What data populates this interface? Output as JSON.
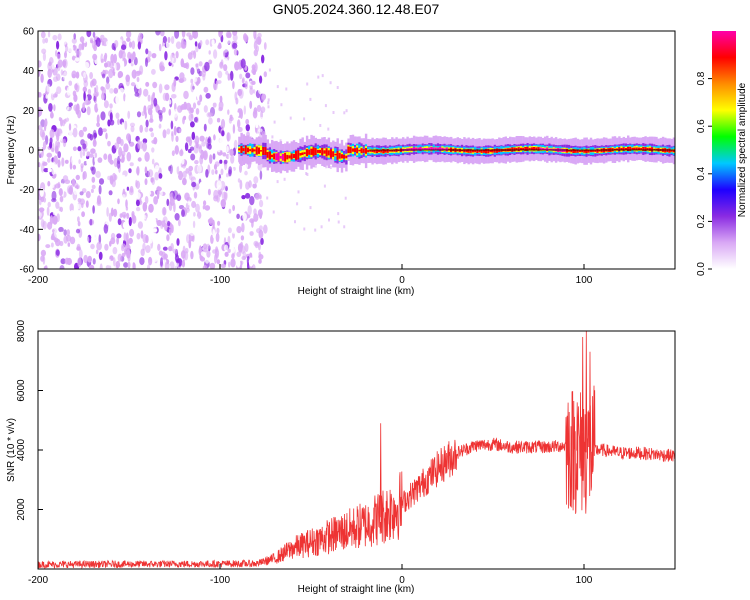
{
  "figure": {
    "title": "GN05.2024.360.12.48.E07"
  },
  "chart_data": [
    {
      "type": "heatmap",
      "xlabel": "Height of straight line (km)",
      "ylabel": "Frequency (Hz)",
      "xlim": [
        -200,
        150
      ],
      "ylim": [
        -60,
        60
      ],
      "xticks": [
        -200,
        -100,
        0,
        100
      ],
      "yticks": [
        -60,
        -40,
        -20,
        0,
        20,
        40,
        60
      ],
      "grid": false,
      "colorbar": {
        "label": "Normalized spectral amplitude",
        "range": [
          0,
          1
        ],
        "ticks": [
          0.0,
          0.2,
          0.4,
          0.6,
          0.8
        ],
        "colormap": [
          "#ffffff",
          "#d9a8f5",
          "#8a2be2",
          "#1e00ff",
          "#00c8ff",
          "#00ff00",
          "#ffff00",
          "#ff8c00",
          "#ff0000",
          "#ff00aa"
        ]
      },
      "features": {
        "noise_region_x": [
          -200,
          -75
        ],
        "signal_band_center_hz": 0,
        "signal_band_start_x": -90
      }
    },
    {
      "type": "line",
      "xlabel": "Height of straight line (km)",
      "ylabel": "SNR (10 * v/v)",
      "xlim": [
        -200,
        150
      ],
      "ylim": [
        0,
        8000
      ],
      "xticks": [
        -200,
        -100,
        0,
        100
      ],
      "yticks": [
        2000,
        4000,
        6000,
        8000
      ],
      "color": "#ee3333",
      "grid": false,
      "trend": {
        "x": [
          -200,
          -80,
          -70,
          -60,
          -50,
          -40,
          -30,
          -20,
          -10,
          0,
          10,
          20,
          30,
          40,
          50,
          60,
          70,
          80,
          90,
          95,
          100,
          105,
          110,
          120,
          130,
          140,
          150
        ],
        "y": [
          150,
          180,
          350,
          700,
          900,
          1100,
          1300,
          1500,
          1800,
          2200,
          2800,
          3400,
          3900,
          4150,
          4200,
          4100,
          4100,
          4100,
          4150,
          4000,
          3900,
          4000,
          4000,
          3900,
          3900,
          3850,
          3800
        ]
      },
      "spikes": [
        {
          "x": -12,
          "y": 4900
        },
        {
          "x": 96,
          "y": 5600
        },
        {
          "x": 99,
          "y": 7800
        },
        {
          "x": 101,
          "y": 8000
        },
        {
          "x": 103,
          "y": 7300
        }
      ]
    }
  ]
}
